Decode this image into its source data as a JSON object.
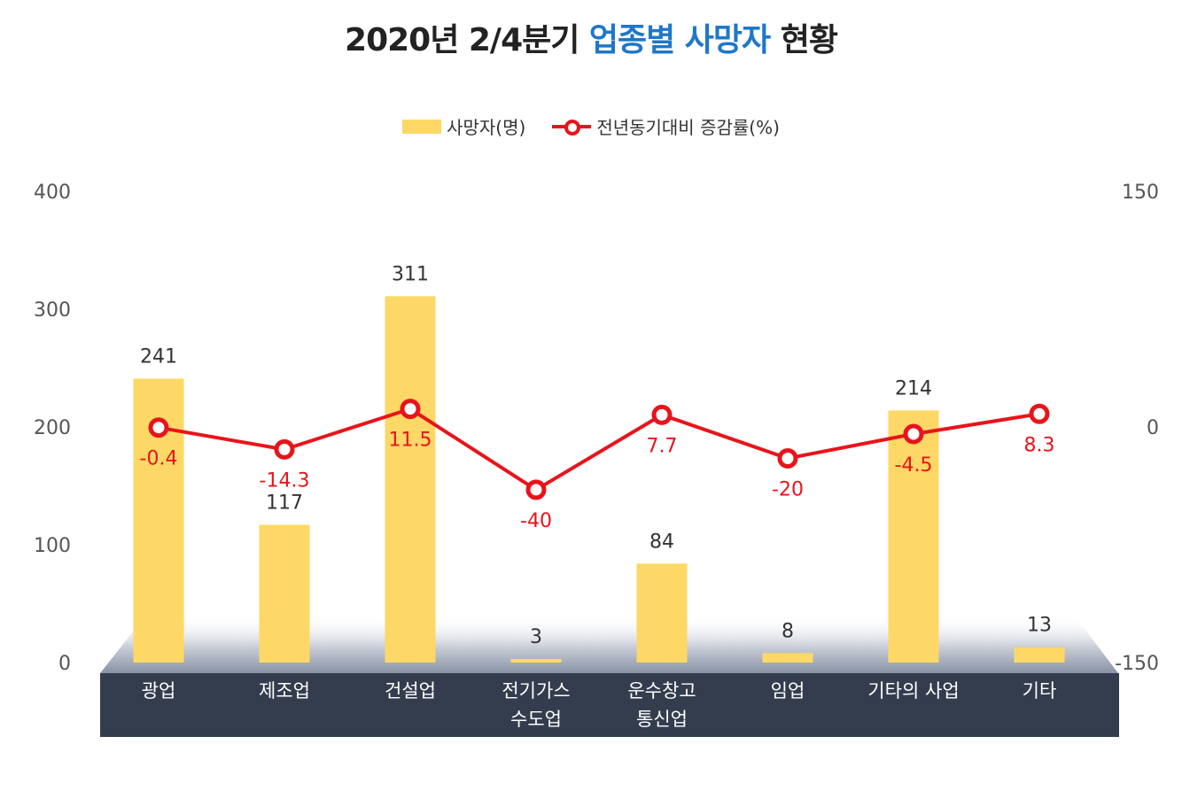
{
  "title": {
    "prefix": "2020년 2/4분기 ",
    "highlight": "업종별 사망자",
    "suffix": " 현황"
  },
  "legend": {
    "bar": "사망자(명)",
    "line": "전년동기대비 증감률(%)"
  },
  "colors": {
    "bar": "#fdd866",
    "line": "#e8141b",
    "category_band": "#333d4e",
    "title_highlight": "#1f77c9"
  },
  "chart_data": {
    "type": "bar",
    "categories": [
      [
        "광업"
      ],
      [
        "제조업"
      ],
      [
        "건설업"
      ],
      [
        "전기가스",
        "수도업"
      ],
      [
        "운수창고",
        "통신업"
      ],
      [
        "임업"
      ],
      [
        "기타의 사업"
      ],
      [
        "기타"
      ]
    ],
    "series": [
      {
        "name": "사망자(명)",
        "type": "bar",
        "axis": "left",
        "values": [
          241,
          117,
          311,
          3,
          84,
          8,
          214,
          13
        ]
      },
      {
        "name": "전년동기대비 증감률(%)",
        "type": "line",
        "axis": "right",
        "values": [
          -0.4,
          -14.3,
          11.5,
          -40,
          7.7,
          -20,
          -4.5,
          8.3
        ]
      }
    ],
    "y_left": {
      "ticks": [
        "0",
        "100",
        "200",
        "300",
        "400"
      ],
      "ylim": [
        0,
        400
      ]
    },
    "y_right": {
      "ticks": [
        "-150",
        "0",
        "150"
      ],
      "ylim": [
        -150,
        150
      ]
    },
    "legend_position": "top-center",
    "grid": false
  }
}
